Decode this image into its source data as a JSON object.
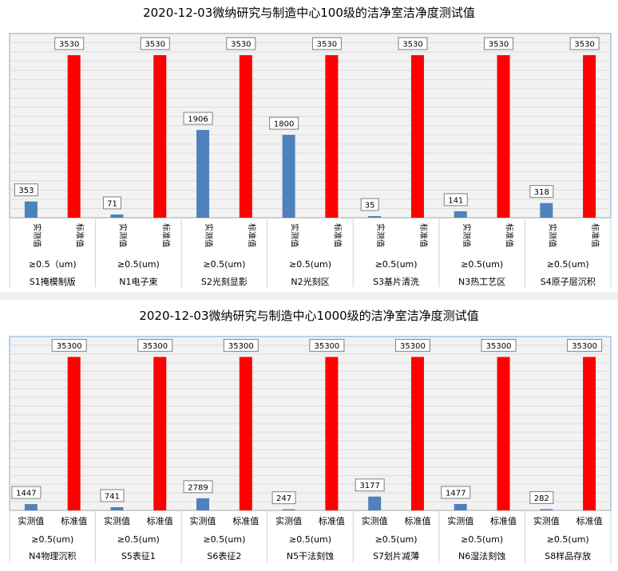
{
  "chart_data": [
    {
      "type": "bar",
      "title": "2020-12-03微纳研究与制造中心100级的洁净室洁净度测试值",
      "series_labels": [
        "实测值",
        "标准值"
      ],
      "series_colors": [
        "#4f81bd",
        "#ff0000"
      ],
      "ylim": [
        0,
        4000
      ],
      "groups": [
        {
          "particle": "≥0.5（um)",
          "area": "S1掩模制版",
          "values": [
            353,
            3530
          ]
        },
        {
          "particle": "≥0.5(um)",
          "area": "N1电子束",
          "values": [
            71,
            3530
          ]
        },
        {
          "particle": "≥0.5(um)",
          "area": "S2光刻显影",
          "values": [
            1906,
            3530
          ]
        },
        {
          "particle": "≥0.5(um)",
          "area": "N2光刻区",
          "values": [
            1800,
            3530
          ]
        },
        {
          "particle": "≥0.5(um)",
          "area": "S3基片清洗",
          "values": [
            35,
            3530
          ]
        },
        {
          "particle": "≥0.5(um)",
          "area": "N3热工艺区",
          "values": [
            141,
            3530
          ]
        },
        {
          "particle": "≥0.5(um)",
          "area": "S4原子层沉积",
          "values": [
            318,
            3530
          ]
        }
      ]
    },
    {
      "type": "bar",
      "title": "2020-12-03微纳研究与制造中心1000级的洁净室洁净度测试值",
      "series_labels": [
        "实测值",
        "标准值"
      ],
      "series_colors": [
        "#4f81bd",
        "#ff0000"
      ],
      "ylim": [
        0,
        40000
      ],
      "groups": [
        {
          "particle": "≥0.5(um)",
          "area": "N4物理沉积",
          "values": [
            1447,
            35300
          ]
        },
        {
          "particle": "≥0.5(um)",
          "area": "S5表征1",
          "values": [
            741,
            35300
          ]
        },
        {
          "particle": "≥0.5(um)",
          "area": "S6表征2",
          "values": [
            2789,
            35300
          ]
        },
        {
          "particle": "≥0.5(um)",
          "area": "N5干法刻蚀",
          "values": [
            247,
            35300
          ]
        },
        {
          "particle": "≥0.5(um)",
          "area": "S7划片减薄",
          "values": [
            3177,
            35300
          ]
        },
        {
          "particle": "≥0.5(um)",
          "area": "N6湿法刻蚀",
          "values": [
            1477,
            35300
          ]
        },
        {
          "particle": "≥0.5(um)",
          "area": "S8样品存放",
          "values": [
            282,
            35300
          ]
        }
      ]
    }
  ]
}
